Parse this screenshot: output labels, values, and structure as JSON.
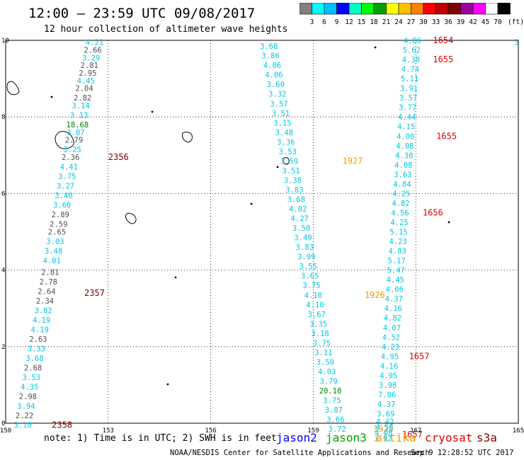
{
  "header": {
    "title": "12:00 – 23:59 UTC 09/08/2017",
    "subtitle": "12 hour collection of altimeter wave heights"
  },
  "colorbar": {
    "colors": [
      "#808080",
      "#00ffff",
      "#00c0ff",
      "#0000ff",
      "#00ffc0",
      "#00ff00",
      "#00a000",
      "#ffff00",
      "#ffc000",
      "#ff8000",
      "#ff0000",
      "#c00000",
      "#800000",
      "#a000a0",
      "#ff00ff",
      "#ffffff",
      "#000000"
    ],
    "labels": [
      "3",
      "6",
      "9",
      "12",
      "15",
      "18",
      "21",
      "24",
      "27",
      "30",
      "33",
      "36",
      "39",
      "42",
      "45",
      "70"
    ],
    "unit": "(ft)"
  },
  "chart_data": {
    "type": "scatter",
    "x_axis": {
      "min": 150,
      "max": 165,
      "ticks": [
        "150",
        "153",
        "156",
        "159",
        "162",
        "165"
      ]
    },
    "y_axis": {
      "min": 0,
      "max": 10,
      "ticks": [
        "0",
        "2",
        "4",
        "6",
        "8",
        "10"
      ]
    },
    "colors": {
      "gray": "#505050",
      "cyan": "#00c8e8",
      "green": "#008000",
      "orange": "#ff9900",
      "red": "#e00000",
      "darkred": "#800000"
    },
    "track_a": {
      "points": [
        {
          "lon": 152.6,
          "lat": 9.95,
          "swh": "4.21",
          "c": "cyan"
        },
        {
          "lon": 152.55,
          "lat": 9.75,
          "swh": "2.66",
          "c": "gray"
        },
        {
          "lon": 152.5,
          "lat": 9.55,
          "swh": "3.29",
          "c": "cyan"
        },
        {
          "lon": 152.45,
          "lat": 9.35,
          "swh": "2.81",
          "c": "gray"
        },
        {
          "lon": 152.4,
          "lat": 9.15,
          "swh": "2.95",
          "c": "gray"
        },
        {
          "lon": 152.35,
          "lat": 8.95,
          "swh": "4.45",
          "c": "cyan"
        },
        {
          "lon": 152.3,
          "lat": 8.75,
          "swh": "2.04",
          "c": "gray"
        },
        {
          "lon": 152.25,
          "lat": 8.5,
          "swh": "2.82",
          "c": "gray"
        },
        {
          "lon": 152.2,
          "lat": 8.3,
          "swh": "3.14",
          "c": "cyan"
        },
        {
          "lon": 152.15,
          "lat": 8.05,
          "swh": "3.13",
          "c": "cyan"
        },
        {
          "lon": 152.1,
          "lat": 7.8,
          "swh": "18.68",
          "c": "green"
        },
        {
          "lon": 152.05,
          "lat": 7.6,
          "swh": "3.07",
          "c": "cyan"
        },
        {
          "lon": 152.0,
          "lat": 7.4,
          "swh": "2.79",
          "c": "gray"
        },
        {
          "lon": 151.95,
          "lat": 7.15,
          "swh": "3.25",
          "c": "cyan"
        },
        {
          "lon": 151.9,
          "lat": 6.95,
          "swh": "2.36",
          "c": "gray"
        },
        {
          "lon": 151.85,
          "lat": 6.7,
          "swh": "4.41",
          "c": "cyan"
        },
        {
          "lon": 151.8,
          "lat": 6.45,
          "swh": "3.75",
          "c": "cyan"
        },
        {
          "lon": 151.75,
          "lat": 6.2,
          "swh": "3.27",
          "c": "cyan"
        },
        {
          "lon": 151.7,
          "lat": 5.95,
          "swh": "3.40",
          "c": "cyan"
        },
        {
          "lon": 151.65,
          "lat": 5.7,
          "swh": "3.60",
          "c": "cyan"
        },
        {
          "lon": 151.6,
          "lat": 5.45,
          "swh": "2.89",
          "c": "gray"
        },
        {
          "lon": 151.55,
          "lat": 5.2,
          "swh": "2.59",
          "c": "gray"
        },
        {
          "lon": 151.5,
          "lat": 5.0,
          "swh": "2.65",
          "c": "gray"
        },
        {
          "lon": 151.45,
          "lat": 4.75,
          "swh": "3.03",
          "c": "cyan"
        },
        {
          "lon": 151.4,
          "lat": 4.5,
          "swh": "3.48",
          "c": "cyan"
        },
        {
          "lon": 151.35,
          "lat": 4.25,
          "swh": "4.01",
          "c": "cyan"
        },
        {
          "lon": 151.3,
          "lat": 3.95,
          "swh": "2.81",
          "c": "gray"
        },
        {
          "lon": 151.25,
          "lat": 3.7,
          "swh": "2.78",
          "c": "gray"
        },
        {
          "lon": 151.2,
          "lat": 3.45,
          "swh": "2.64",
          "c": "gray"
        },
        {
          "lon": 151.15,
          "lat": 3.2,
          "swh": "2.34",
          "c": "gray"
        },
        {
          "lon": 151.1,
          "lat": 2.95,
          "swh": "3.82",
          "c": "cyan"
        },
        {
          "lon": 151.05,
          "lat": 2.7,
          "swh": "4.19",
          "c": "cyan"
        },
        {
          "lon": 151.0,
          "lat": 2.45,
          "swh": "4.19",
          "c": "cyan"
        },
        {
          "lon": 150.95,
          "lat": 2.2,
          "swh": "2.63",
          "c": "gray"
        },
        {
          "lon": 150.9,
          "lat": 1.95,
          "swh": "3.33",
          "c": "cyan"
        },
        {
          "lon": 150.85,
          "lat": 1.7,
          "swh": "3.68",
          "c": "cyan"
        },
        {
          "lon": 150.8,
          "lat": 1.45,
          "swh": "2.68",
          "c": "gray"
        },
        {
          "lon": 150.75,
          "lat": 1.2,
          "swh": "3.53",
          "c": "cyan"
        },
        {
          "lon": 150.7,
          "lat": 0.95,
          "swh": "4.35",
          "c": "cyan"
        },
        {
          "lon": 150.65,
          "lat": 0.7,
          "swh": "2.98",
          "c": "gray"
        },
        {
          "lon": 150.6,
          "lat": 0.45,
          "swh": "3.94",
          "c": "cyan"
        },
        {
          "lon": 150.55,
          "lat": 0.2,
          "swh": "2.22",
          "c": "gray"
        },
        {
          "lon": 150.5,
          "lat": -0.05,
          "swh": "3.10",
          "c": "cyan"
        }
      ],
      "times": [
        {
          "lon": 153.3,
          "lat": 6.95,
          "t": "2356",
          "c": "darkred"
        },
        {
          "lon": 152.6,
          "lat": 3.4,
          "t": "2357",
          "c": "darkred"
        },
        {
          "lon": 151.65,
          "lat": -0.05,
          "t": "2358",
          "c": "darkred"
        }
      ]
    },
    "track_b": {
      "points": [
        {
          "lon": 157.7,
          "lat": 9.85,
          "swh": "3.68",
          "c": "cyan"
        },
        {
          "lon": 157.75,
          "lat": 9.6,
          "swh": "3.86",
          "c": "cyan"
        },
        {
          "lon": 157.8,
          "lat": 9.35,
          "swh": "4.06",
          "c": "cyan"
        },
        {
          "lon": 157.85,
          "lat": 9.1,
          "swh": "4.06",
          "c": "cyan"
        },
        {
          "lon": 157.9,
          "lat": 8.85,
          "swh": "3.60",
          "c": "cyan"
        },
        {
          "lon": 157.95,
          "lat": 8.6,
          "swh": "3.32",
          "c": "cyan"
        },
        {
          "lon": 158.0,
          "lat": 8.35,
          "swh": "3.57",
          "c": "cyan"
        },
        {
          "lon": 158.05,
          "lat": 8.1,
          "swh": "3.51",
          "c": "cyan"
        },
        {
          "lon": 158.1,
          "lat": 7.85,
          "swh": "3.15",
          "c": "cyan"
        },
        {
          "lon": 158.15,
          "lat": 7.6,
          "swh": "3.48",
          "c": "cyan"
        },
        {
          "lon": 158.2,
          "lat": 7.35,
          "swh": "3.36",
          "c": "cyan"
        },
        {
          "lon": 158.25,
          "lat": 7.1,
          "swh": "3.53",
          "c": "cyan"
        },
        {
          "lon": 158.3,
          "lat": 6.85,
          "swh": "3.59",
          "c": "cyan"
        },
        {
          "lon": 158.35,
          "lat": 6.6,
          "swh": "3.51",
          "c": "cyan"
        },
        {
          "lon": 158.4,
          "lat": 6.35,
          "swh": "3.38",
          "c": "cyan"
        },
        {
          "lon": 158.45,
          "lat": 6.1,
          "swh": "3.83",
          "c": "cyan"
        },
        {
          "lon": 158.5,
          "lat": 5.85,
          "swh": "3.68",
          "c": "cyan"
        },
        {
          "lon": 158.55,
          "lat": 5.6,
          "swh": "4.02",
          "c": "cyan"
        },
        {
          "lon": 158.6,
          "lat": 5.35,
          "swh": "4.27",
          "c": "cyan"
        },
        {
          "lon": 158.65,
          "lat": 5.1,
          "swh": "3.50",
          "c": "cyan"
        },
        {
          "lon": 158.7,
          "lat": 4.85,
          "swh": "3.49",
          "c": "cyan"
        },
        {
          "lon": 158.75,
          "lat": 4.6,
          "swh": "3.83",
          "c": "cyan"
        },
        {
          "lon": 158.8,
          "lat": 4.35,
          "swh": "3.99",
          "c": "cyan"
        },
        {
          "lon": 158.85,
          "lat": 4.1,
          "swh": "3.55",
          "c": "cyan"
        },
        {
          "lon": 158.9,
          "lat": 3.85,
          "swh": "3.65",
          "c": "cyan"
        },
        {
          "lon": 158.95,
          "lat": 3.6,
          "swh": "3.75",
          "c": "cyan"
        },
        {
          "lon": 159.0,
          "lat": 3.35,
          "swh": "4.10",
          "c": "cyan"
        },
        {
          "lon": 159.05,
          "lat": 3.1,
          "swh": "4.10",
          "c": "cyan"
        },
        {
          "lon": 159.1,
          "lat": 2.85,
          "swh": "3.67",
          "c": "cyan"
        },
        {
          "lon": 159.15,
          "lat": 2.6,
          "swh": "3.35",
          "c": "cyan"
        },
        {
          "lon": 159.2,
          "lat": 2.35,
          "swh": "3.18",
          "c": "cyan"
        },
        {
          "lon": 159.25,
          "lat": 2.1,
          "swh": "3.75",
          "c": "cyan"
        },
        {
          "lon": 159.3,
          "lat": 1.85,
          "swh": "3.11",
          "c": "cyan"
        },
        {
          "lon": 159.35,
          "lat": 1.6,
          "swh": "3.50",
          "c": "cyan"
        },
        {
          "lon": 159.4,
          "lat": 1.35,
          "swh": "4.03",
          "c": "cyan"
        },
        {
          "lon": 159.45,
          "lat": 1.1,
          "swh": "3.79",
          "c": "cyan"
        },
        {
          "lon": 159.5,
          "lat": 0.85,
          "swh": "20.10",
          "c": "green"
        },
        {
          "lon": 159.55,
          "lat": 0.6,
          "swh": "3.75",
          "c": "cyan"
        },
        {
          "lon": 159.6,
          "lat": 0.35,
          "swh": "3.87",
          "c": "cyan"
        },
        {
          "lon": 159.65,
          "lat": 0.1,
          "swh": "3.66",
          "c": "cyan"
        },
        {
          "lon": 159.7,
          "lat": -0.15,
          "swh": "3.72",
          "c": "cyan"
        }
      ],
      "times": [
        {
          "lon": 160.15,
          "lat": 6.85,
          "t": "1927",
          "c": "orange"
        },
        {
          "lon": 160.8,
          "lat": 3.35,
          "t": "1926",
          "c": "orange"
        },
        {
          "lon": 161.05,
          "lat": -0.15,
          "t": "1925",
          "c": "orange"
        }
      ]
    },
    "track_c": {
      "points": [
        {
          "lon": 161.9,
          "lat": 10.0,
          "swh": "4.86",
          "c": "cyan"
        },
        {
          "lon": 161.88,
          "lat": 9.75,
          "swh": "5.62",
          "c": "cyan"
        },
        {
          "lon": 161.86,
          "lat": 9.5,
          "swh": "4.38",
          "c": "cyan"
        },
        {
          "lon": 161.84,
          "lat": 9.25,
          "swh": "4.74",
          "c": "cyan"
        },
        {
          "lon": 161.82,
          "lat": 9.0,
          "swh": "5.11",
          "c": "cyan"
        },
        {
          "lon": 161.8,
          "lat": 8.75,
          "swh": "3.91",
          "c": "cyan"
        },
        {
          "lon": 161.78,
          "lat": 8.5,
          "swh": "3.57",
          "c": "cyan"
        },
        {
          "lon": 161.76,
          "lat": 8.25,
          "swh": "3.77",
          "c": "cyan"
        },
        {
          "lon": 161.74,
          "lat": 8.0,
          "swh": "4.44",
          "c": "cyan"
        },
        {
          "lon": 161.72,
          "lat": 7.75,
          "swh": "4.15",
          "c": "cyan"
        },
        {
          "lon": 161.7,
          "lat": 7.5,
          "swh": "4.00",
          "c": "cyan"
        },
        {
          "lon": 161.68,
          "lat": 7.25,
          "swh": "4.08",
          "c": "cyan"
        },
        {
          "lon": 161.66,
          "lat": 7.0,
          "swh": "4.30",
          "c": "cyan"
        },
        {
          "lon": 161.64,
          "lat": 6.75,
          "swh": "4.08",
          "c": "cyan"
        },
        {
          "lon": 161.62,
          "lat": 6.5,
          "swh": "3.63",
          "c": "cyan"
        },
        {
          "lon": 161.6,
          "lat": 6.25,
          "swh": "4.84",
          "c": "cyan"
        },
        {
          "lon": 161.58,
          "lat": 6.0,
          "swh": "4.25",
          "c": "cyan"
        },
        {
          "lon": 161.56,
          "lat": 5.75,
          "swh": "4.82",
          "c": "cyan"
        },
        {
          "lon": 161.54,
          "lat": 5.5,
          "swh": "4.56",
          "c": "cyan"
        },
        {
          "lon": 161.52,
          "lat": 5.25,
          "swh": "4.25",
          "c": "cyan"
        },
        {
          "lon": 161.5,
          "lat": 5.0,
          "swh": "5.15",
          "c": "cyan"
        },
        {
          "lon": 161.48,
          "lat": 4.75,
          "swh": "4.23",
          "c": "cyan"
        },
        {
          "lon": 161.46,
          "lat": 4.5,
          "swh": "4.83",
          "c": "cyan"
        },
        {
          "lon": 161.44,
          "lat": 4.25,
          "swh": "5.17",
          "c": "cyan"
        },
        {
          "lon": 161.42,
          "lat": 4.0,
          "swh": "5.47",
          "c": "cyan"
        },
        {
          "lon": 161.4,
          "lat": 3.75,
          "swh": "4.45",
          "c": "cyan"
        },
        {
          "lon": 161.38,
          "lat": 3.5,
          "swh": "4.06",
          "c": "cyan"
        },
        {
          "lon": 161.36,
          "lat": 3.25,
          "swh": "4.37",
          "c": "cyan"
        },
        {
          "lon": 161.34,
          "lat": 3.0,
          "swh": "4.16",
          "c": "cyan"
        },
        {
          "lon": 161.32,
          "lat": 2.75,
          "swh": "4.82",
          "c": "cyan"
        },
        {
          "lon": 161.3,
          "lat": 2.5,
          "swh": "4.07",
          "c": "cyan"
        },
        {
          "lon": 161.28,
          "lat": 2.25,
          "swh": "4.52",
          "c": "cyan"
        },
        {
          "lon": 161.26,
          "lat": 2.0,
          "swh": "4.23",
          "c": "cyan"
        },
        {
          "lon": 161.24,
          "lat": 1.75,
          "swh": "4.95",
          "c": "cyan"
        },
        {
          "lon": 161.22,
          "lat": 1.5,
          "swh": "4.16",
          "c": "cyan"
        },
        {
          "lon": 161.2,
          "lat": 1.25,
          "swh": "4.95",
          "c": "cyan"
        },
        {
          "lon": 161.18,
          "lat": 1.0,
          "swh": "3.98",
          "c": "cyan"
        },
        {
          "lon": 161.16,
          "lat": 0.75,
          "swh": "7.06",
          "c": "cyan"
        },
        {
          "lon": 161.14,
          "lat": 0.5,
          "swh": "4.37",
          "c": "cyan"
        },
        {
          "lon": 161.12,
          "lat": 0.25,
          "swh": "3.69",
          "c": "cyan"
        },
        {
          "lon": 161.1,
          "lat": 0.05,
          "swh": "4.42",
          "c": "cyan"
        },
        {
          "lon": 161.08,
          "lat": -0.1,
          "swh": "4.50",
          "c": "cyan"
        },
        {
          "lon": 161.06,
          "lat": -0.25,
          "swh": "4.98",
          "c": "cyan"
        },
        {
          "lon": 161.04,
          "lat": -0.4,
          "swh": "3.92",
          "c": "cyan"
        }
      ],
      "times": [
        {
          "lon": 162.8,
          "lat": 10.0,
          "t": "1654",
          "c": "red"
        },
        {
          "lon": 162.8,
          "lat": 9.5,
          "t": "1655",
          "c": "red"
        },
        {
          "lon": 162.9,
          "lat": 7.5,
          "t": "1655",
          "c": "red"
        },
        {
          "lon": 162.5,
          "lat": 5.5,
          "t": "1656",
          "c": "red"
        },
        {
          "lon": 162.1,
          "lat": 1.75,
          "t": "1657",
          "c": "red"
        },
        {
          "lon": 161.9,
          "lat": -0.3,
          "t": "1657",
          "c": "red"
        }
      ]
    },
    "edge_label": {
      "lon": 164.95,
      "lat": 9.95,
      "swh": "3",
      "c": "cyan"
    }
  },
  "footer": {
    "note": "note: 1) Time is in UTC; 2) SWH is in feet",
    "legend": [
      {
        "name": "jason2",
        "color": "#0000ff"
      },
      {
        "name": "jason3",
        "color": "#00a000"
      },
      {
        "name": "altika",
        "color": "#ff9900"
      },
      {
        "name": "cryosat",
        "color": "#e00000"
      },
      {
        "name": "s3a",
        "color": "#800000"
      }
    ],
    "credit": "NOAA/NESDIS Center for Satellite Applications and Research",
    "timestamp": "Sep  9 12:28:52 UTC 2017"
  }
}
